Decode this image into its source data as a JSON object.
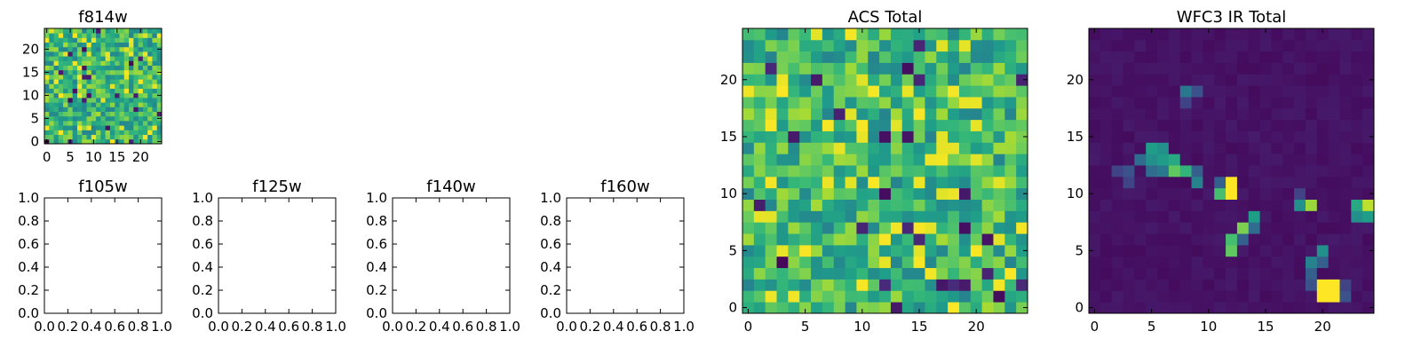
{
  "chart_data": [
    {
      "id": "f814w",
      "type": "heatmap",
      "title": "f814w",
      "xlim": [
        -0.5,
        24.5
      ],
      "ylim": [
        -0.5,
        24.5
      ],
      "xticks": [
        0,
        5,
        10,
        15,
        20
      ],
      "yticks": [
        0,
        5,
        10,
        15,
        20
      ],
      "colormap": "viridis",
      "value_range": [
        0,
        1
      ],
      "grid_size": [
        25,
        25
      ],
      "pattern": "noise"
    },
    {
      "id": "f105w",
      "type": "empty",
      "title": "f105w",
      "xlim": [
        0,
        1
      ],
      "ylim": [
        0,
        1
      ],
      "xticks": [
        "0.0",
        "0.2",
        "0.4",
        "0.6",
        "0.8",
        "1.0"
      ],
      "yticks": [
        "0.0",
        "0.2",
        "0.4",
        "0.6",
        "0.8",
        "1.0"
      ]
    },
    {
      "id": "f125w",
      "type": "empty",
      "title": "f125w",
      "xlim": [
        0,
        1
      ],
      "ylim": [
        0,
        1
      ],
      "xticks": [
        "0.0",
        "0.2",
        "0.4",
        "0.6",
        "0.8",
        "1.0"
      ],
      "yticks": [
        "0.0",
        "0.2",
        "0.4",
        "0.6",
        "0.8",
        "1.0"
      ]
    },
    {
      "id": "f140w",
      "type": "empty",
      "title": "f140w",
      "xlim": [
        0,
        1
      ],
      "ylim": [
        0,
        1
      ],
      "xticks": [
        "0.0",
        "0.2",
        "0.4",
        "0.6",
        "0.8",
        "1.0"
      ],
      "yticks": [
        "0.0",
        "0.2",
        "0.4",
        "0.6",
        "0.8",
        "1.0"
      ]
    },
    {
      "id": "f160w",
      "type": "empty",
      "title": "f160w",
      "xlim": [
        0,
        1
      ],
      "ylim": [
        0,
        1
      ],
      "xticks": [
        "0.0",
        "0.2",
        "0.4",
        "0.6",
        "0.8",
        "1.0"
      ],
      "yticks": [
        "0.0",
        "0.2",
        "0.4",
        "0.6",
        "0.8",
        "1.0"
      ]
    },
    {
      "id": "acs-total",
      "type": "heatmap",
      "title": "ACS Total",
      "xlim": [
        -0.5,
        24.5
      ],
      "ylim": [
        -0.5,
        24.5
      ],
      "xticks": [
        0,
        5,
        10,
        15,
        20
      ],
      "yticks": [
        0,
        5,
        10,
        15,
        20
      ],
      "colormap": "viridis",
      "value_range": [
        0,
        1
      ],
      "grid_size": [
        25,
        25
      ],
      "pattern": "noise"
    },
    {
      "id": "wfc3-ir-total",
      "type": "heatmap",
      "title": "WFC3 IR Total",
      "xlim": [
        -0.5,
        24.5
      ],
      "ylim": [
        -0.5,
        24.5
      ],
      "xticks": [
        0,
        5,
        10,
        15,
        20
      ],
      "yticks": [
        0,
        5,
        10,
        15,
        20
      ],
      "colormap": "viridis",
      "value_range": [
        0,
        1
      ],
      "grid_size": [
        25,
        25
      ],
      "background_level": 0.03,
      "hot_pixels": [
        {
          "x": 5,
          "y": 14,
          "v": 0.55
        },
        {
          "x": 6,
          "y": 14,
          "v": 0.5
        },
        {
          "x": 4,
          "y": 13,
          "v": 0.35
        },
        {
          "x": 5,
          "y": 13,
          "v": 0.5
        },
        {
          "x": 6,
          "y": 13,
          "v": 0.55
        },
        {
          "x": 7,
          "y": 13,
          "v": 0.6
        },
        {
          "x": 2,
          "y": 12,
          "v": 0.2
        },
        {
          "x": 3,
          "y": 12,
          "v": 0.25
        },
        {
          "x": 5,
          "y": 12,
          "v": 0.35
        },
        {
          "x": 7,
          "y": 12,
          "v": 0.75
        },
        {
          "x": 8,
          "y": 12,
          "v": 0.65
        },
        {
          "x": 3,
          "y": 11,
          "v": 0.2
        },
        {
          "x": 6,
          "y": 12,
          "v": 0.4
        },
        {
          "x": 9,
          "y": 12,
          "v": 0.3
        },
        {
          "x": 9,
          "y": 11,
          "v": 0.45
        },
        {
          "x": 12,
          "y": 11,
          "v": 1.0
        },
        {
          "x": 11,
          "y": 10,
          "v": 0.7
        },
        {
          "x": 12,
          "y": 10,
          "v": 1.0
        },
        {
          "x": 11,
          "y": 11,
          "v": 0.3
        },
        {
          "x": 8,
          "y": 19,
          "v": 0.4
        },
        {
          "x": 9,
          "y": 19,
          "v": 0.25
        },
        {
          "x": 8,
          "y": 18,
          "v": 0.2
        },
        {
          "x": 18,
          "y": 9,
          "v": 0.5
        },
        {
          "x": 19,
          "y": 9,
          "v": 0.85
        },
        {
          "x": 18,
          "y": 10,
          "v": 0.2
        },
        {
          "x": 23,
          "y": 9,
          "v": 0.6
        },
        {
          "x": 24,
          "y": 9,
          "v": 0.9
        },
        {
          "x": 23,
          "y": 8,
          "v": 0.5
        },
        {
          "x": 24,
          "y": 8,
          "v": 0.55
        },
        {
          "x": 14,
          "y": 8,
          "v": 0.55
        },
        {
          "x": 13,
          "y": 7,
          "v": 0.8
        },
        {
          "x": 14,
          "y": 7,
          "v": 0.35
        },
        {
          "x": 12,
          "y": 6,
          "v": 0.7
        },
        {
          "x": 13,
          "y": 6,
          "v": 0.3
        },
        {
          "x": 12,
          "y": 5,
          "v": 0.75
        },
        {
          "x": 20,
          "y": 5,
          "v": 0.5
        },
        {
          "x": 19,
          "y": 4,
          "v": 0.45
        },
        {
          "x": 20,
          "y": 4,
          "v": 0.3
        },
        {
          "x": 19,
          "y": 3,
          "v": 0.3
        },
        {
          "x": 20,
          "y": 2,
          "v": 1.0
        },
        {
          "x": 21,
          "y": 2,
          "v": 1.0
        },
        {
          "x": 20,
          "y": 1,
          "v": 1.0
        },
        {
          "x": 21,
          "y": 1,
          "v": 1.0
        },
        {
          "x": 19,
          "y": 2,
          "v": 0.25
        },
        {
          "x": 22,
          "y": 2,
          "v": 0.2
        },
        {
          "x": 22,
          "y": 1,
          "v": 0.25
        }
      ]
    }
  ]
}
